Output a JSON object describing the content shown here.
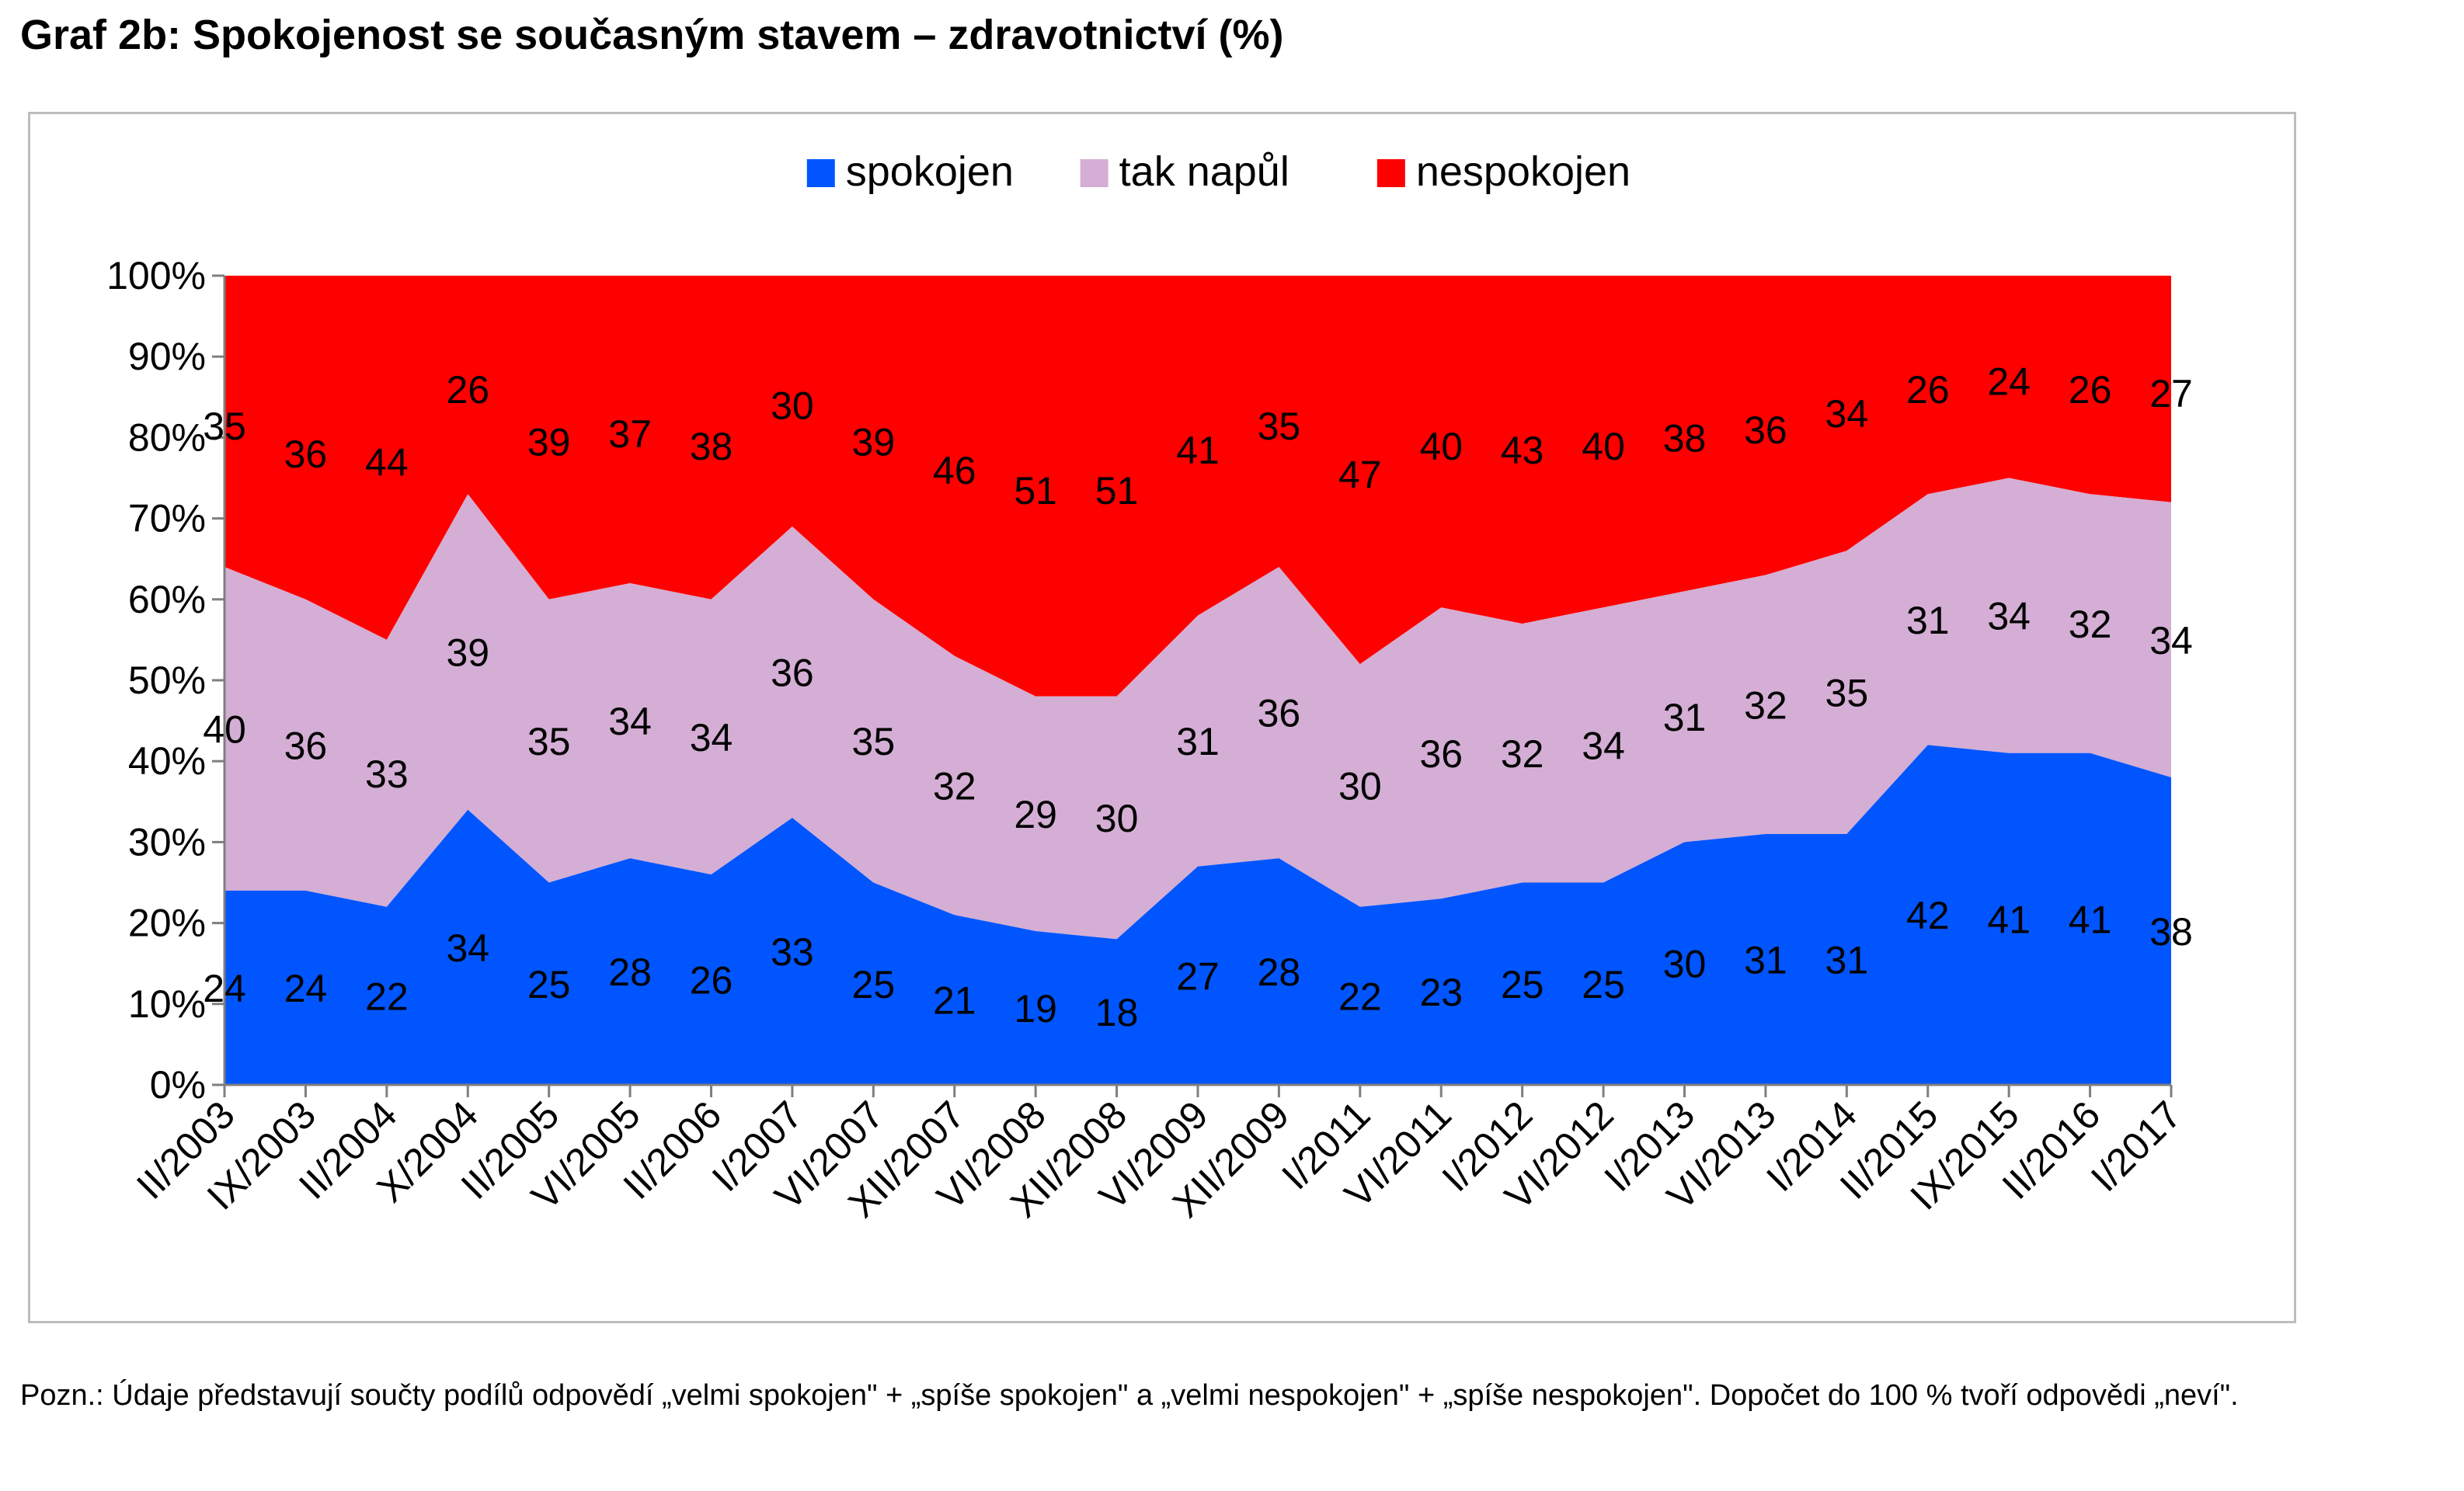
{
  "title": "Graf 2b: Spokojenost se současným stavem – zdravotnictví (%)",
  "note": "Pozn.: Údaje představují součty podílů odpovědí „velmi spokojen\" + „spíše spokojen\" a „velmi nespokojen\" + „spíše nespokojen\". Dopočet do 100 % tvoří odpovědi „neví\".",
  "chart_data": {
    "type": "area",
    "stacked": true,
    "percent_scale": true,
    "categories": [
      "II/2003",
      "IX/2003",
      "II/2004",
      "X/2004",
      "II/2005",
      "VI/2005",
      "II/2006",
      "I/2007",
      "VI/2007",
      "XII/2007",
      "VI/2008",
      "XII/2008",
      "VI/2009",
      "XII/2009",
      "I/2011",
      "VI/2011",
      "I/2012",
      "VI/2012",
      "I/2013",
      "VI/2013",
      "I/2014",
      "II/2015",
      "IX/2015",
      "II/2016",
      "I/2017"
    ],
    "series": [
      {
        "name": "spokojen",
        "color": "#0055ff",
        "values": [
          24,
          24,
          22,
          34,
          25,
          28,
          26,
          33,
          25,
          21,
          19,
          18,
          27,
          28,
          22,
          23,
          25,
          25,
          30,
          31,
          31,
          42,
          41,
          41,
          38
        ]
      },
      {
        "name": "tak napůl",
        "color": "#d4aed4",
        "values": [
          40,
          36,
          33,
          39,
          35,
          34,
          34,
          36,
          35,
          32,
          29,
          30,
          31,
          36,
          30,
          36,
          32,
          34,
          31,
          32,
          35,
          31,
          34,
          32,
          34
        ]
      },
      {
        "name": "nespokojen",
        "color": "#ff0000",
        "values": [
          35,
          36,
          44,
          26,
          39,
          37,
          38,
          30,
          39,
          46,
          51,
          51,
          41,
          35,
          47,
          40,
          43,
          40,
          38,
          36,
          34,
          26,
          24,
          26,
          27
        ]
      }
    ],
    "y_ticks": [
      "0%",
      "10%",
      "20%",
      "30%",
      "40%",
      "50%",
      "60%",
      "70%",
      "80%",
      "90%",
      "100%"
    ],
    "ylim": [
      0,
      100
    ],
    "legend_position": "top-center",
    "grid": false
  }
}
